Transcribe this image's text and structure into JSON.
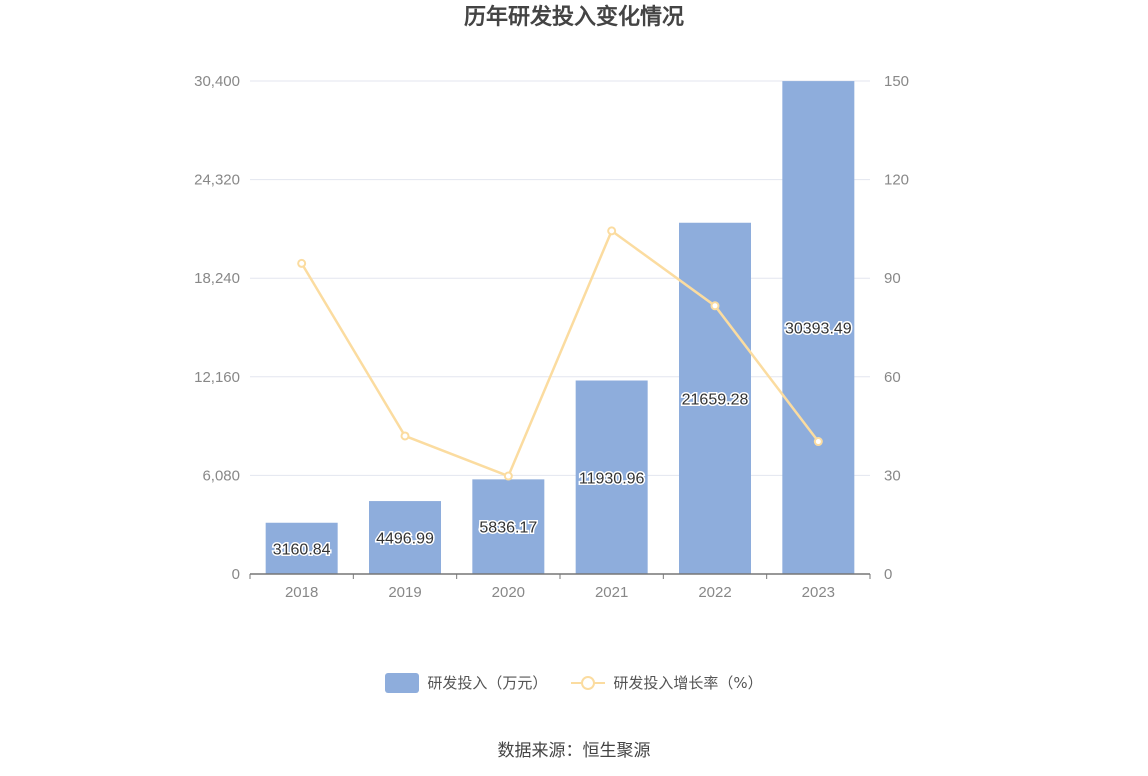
{
  "chart_data": {
    "type": "bar",
    "title": "历年研发投入变化情况",
    "categories": [
      "2018",
      "2019",
      "2020",
      "2021",
      "2022",
      "2023"
    ],
    "series": [
      {
        "name": "研发投入（万元）",
        "type": "bar",
        "axis": "left",
        "values": [
          3160.84,
          4496.99,
          5836.17,
          11930.96,
          21659.28,
          30393.49
        ],
        "labels": [
          "3160.84",
          "4496.99",
          "5836.17",
          "11930.96",
          "21659.28",
          "30393.49"
        ],
        "color": "#8eaddc"
      },
      {
        "name": "研发投入增长率（%）",
        "type": "line",
        "axis": "right",
        "values": [
          94.5,
          42,
          29.8,
          104.4,
          81.6,
          40.3
        ],
        "color": "#fbdca0"
      }
    ],
    "y_left": {
      "ylim": [
        0,
        30400
      ],
      "ticks": [
        "0",
        "6,080",
        "12,160",
        "18,240",
        "24,320",
        "30,400"
      ]
    },
    "y_right": {
      "ylim": [
        0,
        150
      ],
      "ticks": [
        "0",
        "30",
        "60",
        "90",
        "120",
        "150"
      ]
    },
    "grid": true,
    "legend_position": "bottom"
  },
  "source": "数据来源：恒生聚源"
}
